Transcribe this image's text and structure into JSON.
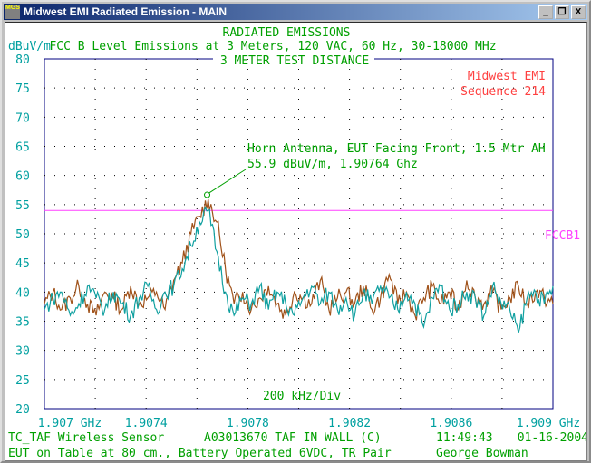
{
  "window": {
    "title": "Midwest EMI Radiated Emission - MAIN",
    "app_icon_text": "MGS",
    "controls": [
      "_",
      "❐",
      "X"
    ]
  },
  "header": {
    "line1": "RADIATED EMISSIONS",
    "line2": "FCC B Level Emissions at 3 Meters, 120 VAC, 60 Hz, 30-18000 MHz",
    "line3": "3 METER TEST DISTANCE"
  },
  "footer": {
    "eut": "TC_TAF Wireless Sensor",
    "model": "A03013670 TAF IN WALL (C)",
    "time": "11:49:43",
    "date": "01-16-2004",
    "setup": "EUT on Table at 80 cm., Battery Operated 6VDC, TR Pair",
    "operator": "George Bowman"
  },
  "colors": {
    "text_green": "#00a000",
    "axis_teal": "#00a0a0",
    "limit": "#ff40ff",
    "brand_red": "#ff4040",
    "series1": "#a0521a",
    "series2": "#10a0a0",
    "frame": "#000080"
  },
  "chart_data": {
    "type": "line",
    "ylabel": "dBuV/m",
    "ylim": [
      20,
      80
    ],
    "yticks": [
      "80",
      "75",
      "70",
      "65",
      "60",
      "55",
      "50",
      "45",
      "40",
      "35",
      "30",
      "25",
      "20"
    ],
    "xlim": [
      1.907,
      1.909
    ],
    "xticks": [
      {
        "v": 1.907,
        "label": "1.907 GHz"
      },
      {
        "v": 1.9074,
        "label": "1.9074"
      },
      {
        "v": 1.9078,
        "label": "1.9078"
      },
      {
        "v": 1.9082,
        "label": "1.9082"
      },
      {
        "v": 1.9086,
        "label": "1.9086"
      },
      {
        "v": 1.909,
        "label": "1.909 GHz"
      }
    ],
    "x_div_label": "200 kHz/Div",
    "grid": true,
    "brand": [
      "Midwest EMI",
      "Sequence 214"
    ],
    "limit": {
      "name": "FCCB1",
      "value": 54
    },
    "annotation": {
      "lines": [
        "Horn Antenna, EUT Facing Front, 1.5 Mtr AH",
        "55.9 dBuV/m, 1.90764 Ghz"
      ],
      "x": 1.90764,
      "y": 55.9
    },
    "series": [
      {
        "values": [
          38,
          40,
          37,
          39,
          41,
          38,
          36,
          40,
          39,
          37,
          41,
          38,
          39,
          40,
          37,
          42,
          45,
          50,
          53,
          55.9,
          52,
          44,
          38,
          40,
          37,
          39,
          41,
          38,
          36,
          40,
          39,
          38,
          42,
          37,
          39,
          40,
          38,
          41,
          37,
          39,
          43,
          38,
          40,
          36,
          39,
          41,
          38,
          40,
          37,
          42,
          39,
          38,
          40,
          37,
          39,
          41,
          38,
          40,
          39,
          38
        ]
      },
      {
        "values": [
          37,
          39,
          40,
          36,
          38,
          41,
          39,
          37,
          40,
          38,
          36,
          39,
          41,
          37,
          40,
          41,
          44,
          48,
          52,
          54,
          47,
          40,
          36,
          39,
          38,
          41,
          37,
          40,
          38,
          36,
          39,
          41,
          38,
          40,
          37,
          39,
          36,
          40,
          38,
          41,
          39,
          37,
          40,
          38,
          34,
          39,
          41,
          37,
          38,
          40,
          39,
          36,
          41,
          38,
          37,
          33,
          39,
          40,
          38,
          41
        ]
      }
    ]
  }
}
